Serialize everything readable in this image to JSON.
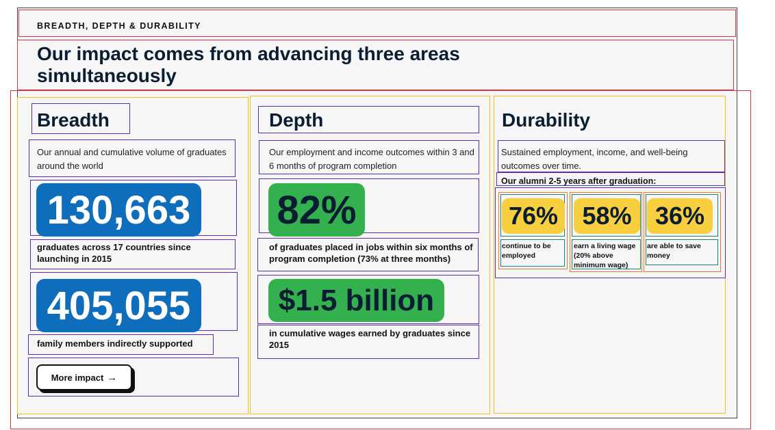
{
  "header": {
    "eyebrow": "BREADTH, DEPTH & DURABILITY",
    "headline": "Our impact comes from advancing three areas simultaneously"
  },
  "breadth": {
    "title": "Breadth",
    "description": "Our annual and cumulative volume of graduates around the world",
    "stat1_value": "130,663",
    "stat1_caption": "graduates across 17 countries since launching in 2015",
    "stat2_value": "405,055",
    "stat2_caption": "family members indirectly supported",
    "button_label": "More impact",
    "button_icon": "arrow-right-icon"
  },
  "depth": {
    "title": "Depth",
    "description": "Our employment and income outcomes within 3 and 6 months of program completion",
    "stat1_value": "82%",
    "stat1_caption": "of graduates placed in jobs within six months of program completion (73% at three months)",
    "stat2_value": "$1.5 billion",
    "stat2_caption": "in cumulative wages earned by graduates since 2015"
  },
  "durability": {
    "title": "Durability",
    "description": "Sustained employment, income, and well-being outcomes over time.",
    "subheading": "Our alumni 2-5 years after graduation:",
    "stats": [
      {
        "value": "76%",
        "caption": "continue to be employed"
      },
      {
        "value": "58%",
        "caption": "earn a living wage (20% above minimum wage)"
      },
      {
        "value": "36%",
        "caption": "are able to save money"
      }
    ]
  },
  "colors": {
    "blue": "#0f6ebc",
    "green": "#34b04f",
    "yellow": "#f8cf3e",
    "navy": "#0b1d33"
  }
}
